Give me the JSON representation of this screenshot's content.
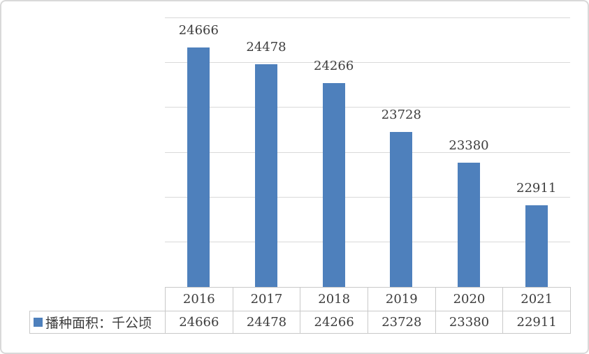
{
  "chart_data": {
    "type": "bar",
    "title": "",
    "categories": [
      "2016",
      "2017",
      "2018",
      "2019",
      "2020",
      "2021"
    ],
    "series": [
      {
        "name": "播种面积：千公顷",
        "values": [
          24666,
          24478,
          24266,
          23728,
          23380,
          22911
        ]
      }
    ],
    "xlabel": "",
    "ylabel": "",
    "ylim": [
      22000,
      25000
    ],
    "ytick_step": 500,
    "yticks": [
      25000,
      24500,
      24000,
      23500,
      23000,
      22500,
      22000
    ],
    "grid": true,
    "data_labels": true,
    "data_table_shown": true,
    "legend_position": "bottom-left",
    "colors": {
      "bar": "#4e80bc",
      "text": "#3d3d3d",
      "gridline": "#d9d9d9",
      "table_border": "#c9c9c9",
      "frame_border": "#d9d9d9",
      "background": "#ffffff"
    }
  }
}
